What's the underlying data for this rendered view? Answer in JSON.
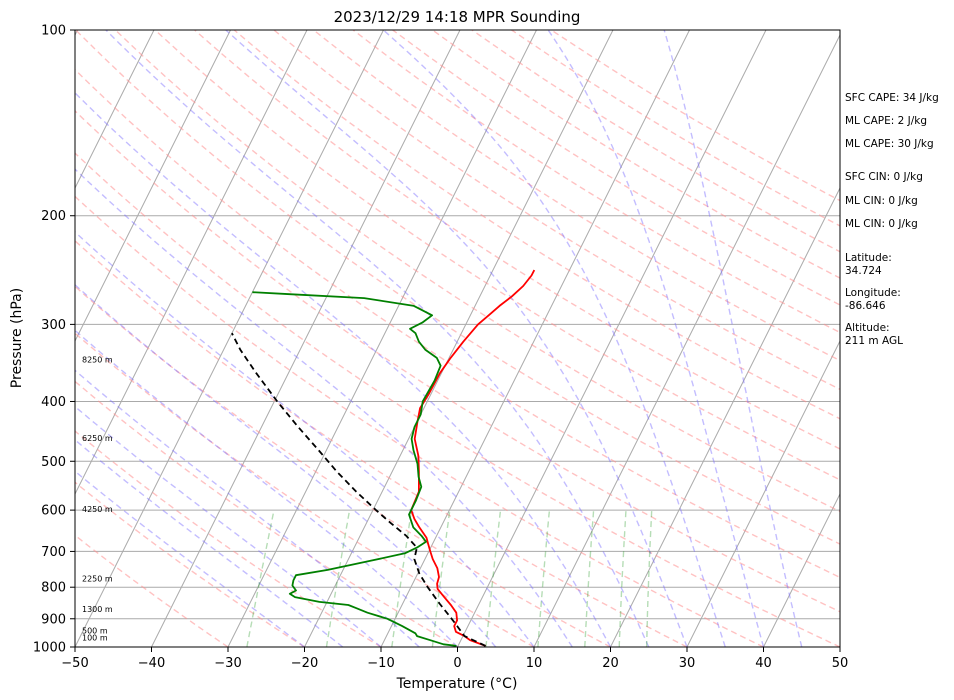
{
  "chart_data": {
    "type": "skew-t",
    "title": "2023/12/29 14:18 MPR Sounding",
    "xlabel": "Temperature (°C)",
    "ylabel": "Pressure (hPa)",
    "xlim": [
      -50,
      50
    ],
    "ylim": [
      1000,
      100
    ],
    "y_scale": "log",
    "x_ticks": [
      "−50",
      "−40",
      "−30",
      "−20",
      "−10",
      "0",
      "10",
      "20",
      "30",
      "40",
      "50"
    ],
    "y_ticks": [
      "100",
      "200",
      "300",
      "400",
      "500",
      "600",
      "700",
      "800",
      "900",
      "1000"
    ],
    "grid": true,
    "height_labels": [
      {
        "p": 965,
        "text": "100 m"
      },
      {
        "p": 940,
        "text": "500 m"
      },
      {
        "p": 868,
        "text": "1300 m"
      },
      {
        "p": 775,
        "text": "2250 m"
      },
      {
        "p": 597,
        "text": "4250 m"
      },
      {
        "p": 458,
        "text": "6250 m"
      },
      {
        "p": 342,
        "text": "8250 m"
      }
    ],
    "series": [
      {
        "color": "#ff0000",
        "points": [
          {
            "p": 996,
            "t": 3.6
          },
          {
            "p": 975,
            "t": 1.2
          },
          {
            "p": 960,
            "t": 0.2
          },
          {
            "p": 945,
            "t": -1.2
          },
          {
            "p": 925,
            "t": -1.8
          },
          {
            "p": 905,
            "t": -1.8
          },
          {
            "p": 880,
            "t": -2.4
          },
          {
            "p": 855,
            "t": -3.6
          },
          {
            "p": 830,
            "t": -5.0
          },
          {
            "p": 805,
            "t": -6.4
          },
          {
            "p": 790,
            "t": -6.8
          },
          {
            "p": 770,
            "t": -7.0
          },
          {
            "p": 745,
            "t": -7.8
          },
          {
            "p": 720,
            "t": -9.0
          },
          {
            "p": 700,
            "t": -9.8
          },
          {
            "p": 680,
            "t": -10.6
          },
          {
            "p": 665,
            "t": -11.2
          },
          {
            "p": 640,
            "t": -12.8
          },
          {
            "p": 620,
            "t": -14.0
          },
          {
            "p": 600,
            "t": -15.0
          },
          {
            "p": 560,
            "t": -15.2
          },
          {
            "p": 520,
            "t": -16.5
          },
          {
            "p": 490,
            "t": -17.6
          },
          {
            "p": 460,
            "t": -19.2
          },
          {
            "p": 430,
            "t": -20.0
          },
          {
            "p": 410,
            "t": -20.5
          },
          {
            "p": 390,
            "t": -20.3
          },
          {
            "p": 360,
            "t": -20.2
          },
          {
            "p": 340,
            "t": -19.8
          },
          {
            "p": 320,
            "t": -19.2
          },
          {
            "p": 300,
            "t": -18.4
          },
          {
            "p": 290,
            "t": -17.6
          },
          {
            "p": 280,
            "t": -16.8
          },
          {
            "p": 270,
            "t": -15.8
          },
          {
            "p": 260,
            "t": -15.0
          },
          {
            "p": 250,
            "t": -14.6
          },
          {
            "p": 245,
            "t": -14.6
          }
        ]
      },
      {
        "color": "#008000",
        "points": [
          {
            "p": 996,
            "t": -0.2
          },
          {
            "p": 990,
            "t": -2.0
          },
          {
            "p": 975,
            "t": -4.0
          },
          {
            "p": 960,
            "t": -6.0
          },
          {
            "p": 950,
            "t": -6.4
          },
          {
            "p": 925,
            "t": -8.6
          },
          {
            "p": 900,
            "t": -11.0
          },
          {
            "p": 880,
            "t": -14.0
          },
          {
            "p": 865,
            "t": -15.8
          },
          {
            "p": 855,
            "t": -17.0
          },
          {
            "p": 845,
            "t": -21.0
          },
          {
            "p": 830,
            "t": -24.5
          },
          {
            "p": 820,
            "t": -25.4
          },
          {
            "p": 810,
            "t": -24.8
          },
          {
            "p": 795,
            "t": -25.6
          },
          {
            "p": 780,
            "t": -25.8
          },
          {
            "p": 765,
            "t": -25.8
          },
          {
            "p": 750,
            "t": -22.0
          },
          {
            "p": 725,
            "t": -17.0
          },
          {
            "p": 705,
            "t": -13.0
          },
          {
            "p": 690,
            "t": -11.8
          },
          {
            "p": 675,
            "t": -11.0
          },
          {
            "p": 660,
            "t": -12.0
          },
          {
            "p": 640,
            "t": -13.6
          },
          {
            "p": 610,
            "t": -15.0
          },
          {
            "p": 580,
            "t": -15.0
          },
          {
            "p": 550,
            "t": -15.2
          },
          {
            "p": 530,
            "t": -16.2
          },
          {
            "p": 505,
            "t": -17.2
          },
          {
            "p": 480,
            "t": -18.6
          },
          {
            "p": 460,
            "t": -19.6
          },
          {
            "p": 440,
            "t": -20.0
          },
          {
            "p": 420,
            "t": -20.0
          },
          {
            "p": 400,
            "t": -20.6
          },
          {
            "p": 370,
            "t": -20.4
          },
          {
            "p": 350,
            "t": -20.6
          },
          {
            "p": 340,
            "t": -21.6
          },
          {
            "p": 330,
            "t": -23.6
          },
          {
            "p": 320,
            "t": -25.0
          },
          {
            "p": 310,
            "t": -26.0
          },
          {
            "p": 305,
            "t": -27.0
          },
          {
            "p": 298,
            "t": -25.8
          },
          {
            "p": 290,
            "t": -25.0
          },
          {
            "p": 280,
            "t": -28.0
          },
          {
            "p": 272,
            "t": -35.0
          },
          {
            "p": 268,
            "t": -45.0
          },
          {
            "p": 266,
            "t": -50.0
          }
        ]
      },
      {
        "color": "#000000",
        "points": [
          {
            "p": 996,
            "t": 3.6
          },
          {
            "p": 960,
            "t": 0.2
          },
          {
            "p": 925,
            "t": -1.4
          },
          {
            "p": 900,
            "t": -2.6
          },
          {
            "p": 850,
            "t": -5.2
          },
          {
            "p": 800,
            "t": -7.8
          },
          {
            "p": 760,
            "t": -9.8
          },
          {
            "p": 720,
            "t": -11.4
          },
          {
            "p": 690,
            "t": -11.8
          },
          {
            "p": 660,
            "t": -14.0
          },
          {
            "p": 630,
            "t": -16.8
          },
          {
            "p": 600,
            "t": -19.6
          },
          {
            "p": 560,
            "t": -23.4
          },
          {
            "p": 520,
            "t": -27.2
          },
          {
            "p": 480,
            "t": -31.0
          },
          {
            "p": 440,
            "t": -35.2
          },
          {
            "p": 400,
            "t": -39.6
          },
          {
            "p": 360,
            "t": -44.2
          },
          {
            "p": 330,
            "t": -47.8
          },
          {
            "p": 310,
            "t": -50.0
          }
        ]
      }
    ]
  },
  "side_info": {
    "sfc_cape": "SFC CAPE: 34 J/kg",
    "ml_cape_1": "ML CAPE: 2 J/kg",
    "ml_cape_2": "ML CAPE: 30 J/kg",
    "sfc_cin": "SFC CIN: 0 J/kg",
    "ml_cin_1": "ML CIN: 0 J/kg",
    "ml_cin_2": "ML CIN: 0 J/kg",
    "latitude": "Latitude:\n34.724",
    "longitude": "Longitude:\n-86.646",
    "altitude": "Altitude:\n211 m AGL"
  }
}
